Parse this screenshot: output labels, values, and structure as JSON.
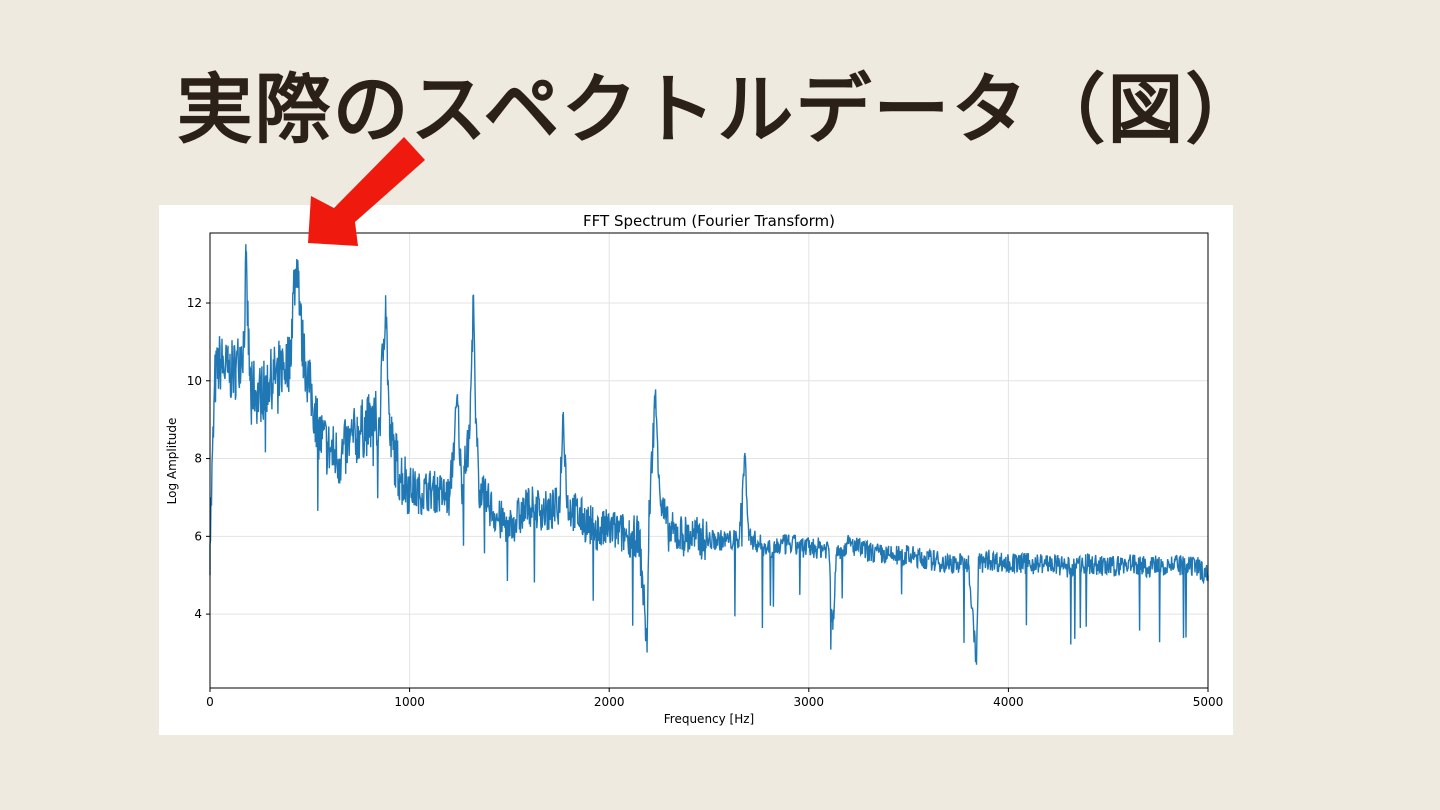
{
  "slide": {
    "title": "実際のスペクトルデータ（図）"
  },
  "colors": {
    "series": "#1f77b4",
    "arrow": "#f0190e",
    "background": "#eeeadf"
  },
  "chart_data": {
    "type": "line",
    "title": "FFT Spectrum (Fourier Transform)",
    "xlabel": "Frequency [Hz]",
    "ylabel": "Log Amplitude",
    "xlim": [
      0,
      5000
    ],
    "ylim": [
      2.1,
      13.8
    ],
    "xticks": [
      0,
      1000,
      2000,
      3000,
      4000,
      5000
    ],
    "yticks": [
      4,
      6,
      8,
      10,
      12
    ],
    "grid": true,
    "series": [
      {
        "name": "",
        "x": [
          0,
          25,
          50,
          90,
          130,
          170,
          180,
          200,
          240,
          300,
          350,
          400,
          420,
          440,
          460,
          500,
          550,
          600,
          650,
          700,
          750,
          800,
          850,
          880,
          900,
          950,
          1000,
          1050,
          1100,
          1150,
          1200,
          1240,
          1260,
          1300,
          1320,
          1330,
          1350,
          1400,
          1450,
          1500,
          1550,
          1600,
          1650,
          1700,
          1750,
          1770,
          1790,
          1850,
          1900,
          1950,
          2000,
          2050,
          2100,
          2150,
          2190,
          2200,
          2230,
          2260,
          2300,
          2400,
          2500,
          2600,
          2650,
          2680,
          2700,
          2750,
          2800,
          2900,
          3000,
          3100,
          3120,
          3140,
          3200,
          3300,
          3400,
          3500,
          3600,
          3700,
          3800,
          3840,
          3850,
          3860,
          3900,
          4000,
          4100,
          4200,
          4300,
          4400,
          4500,
          4600,
          4700,
          4800,
          4900,
          4950,
          5000
        ],
        "y": [
          5.8,
          10.0,
          10.5,
          10.2,
          10.3,
          11.0,
          12.9,
          10.0,
          9.6,
          10.0,
          10.3,
          10.5,
          12.4,
          13.1,
          11.0,
          9.8,
          8.6,
          8.2,
          8.0,
          8.4,
          8.7,
          8.9,
          9.0,
          12.2,
          8.6,
          7.6,
          7.3,
          7.1,
          7.2,
          7.1,
          7.0,
          9.5,
          7.3,
          8.5,
          12.2,
          8.9,
          7.2,
          6.8,
          6.4,
          6.3,
          6.5,
          6.8,
          6.7,
          6.6,
          6.8,
          9.2,
          6.8,
          6.5,
          6.3,
          6.1,
          6.2,
          6.1,
          6.0,
          6.0,
          3.2,
          6.5,
          9.6,
          6.8,
          6.1,
          6.0,
          5.9,
          5.9,
          5.9,
          8.1,
          6.0,
          5.8,
          5.7,
          5.8,
          5.7,
          5.7,
          3.6,
          5.6,
          5.8,
          5.6,
          5.5,
          5.5,
          5.4,
          5.3,
          5.3,
          2.7,
          5.4,
          5.3,
          5.4,
          5.3,
          5.3,
          5.3,
          5.2,
          5.3,
          5.2,
          5.3,
          5.2,
          5.3,
          5.2,
          5.2,
          5.0
        ]
      }
    ]
  }
}
